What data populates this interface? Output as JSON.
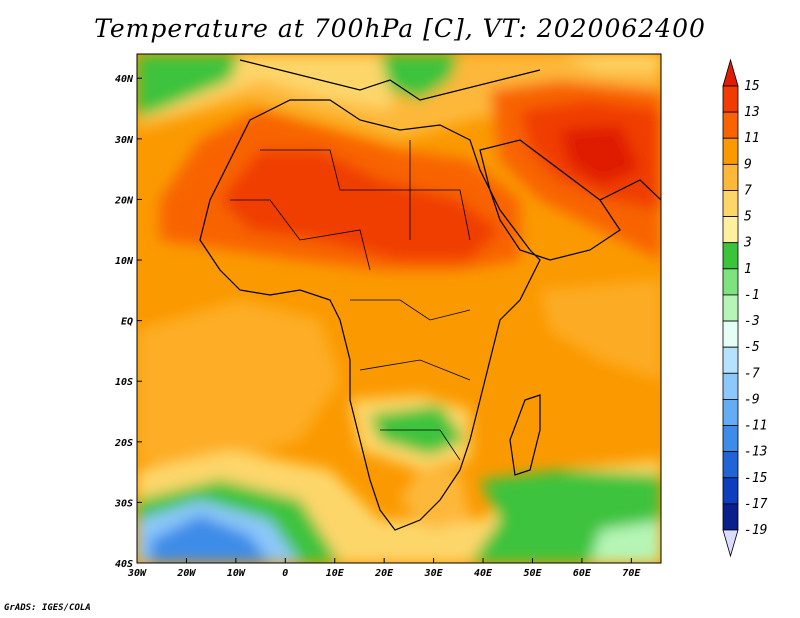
{
  "title": "Temperature at 700hPa [C], VT: 2020062400",
  "credit": "GrADS: IGES/COLA",
  "map": {
    "lon_range": [
      -30,
      76
    ],
    "lat_range": [
      -40,
      44
    ],
    "x_ticks": [
      {
        "value": -30,
        "label": "30W"
      },
      {
        "value": -20,
        "label": "20W"
      },
      {
        "value": -10,
        "label": "10W"
      },
      {
        "value": 0,
        "label": "0"
      },
      {
        "value": 10,
        "label": "10E"
      },
      {
        "value": 20,
        "label": "20E"
      },
      {
        "value": 30,
        "label": "30E"
      },
      {
        "value": 40,
        "label": "40E"
      },
      {
        "value": 50,
        "label": "50E"
      },
      {
        "value": 60,
        "label": "60E"
      },
      {
        "value": 70,
        "label": "70E"
      }
    ],
    "y_ticks": [
      {
        "value": 40,
        "label": "40N"
      },
      {
        "value": 30,
        "label": "30N"
      },
      {
        "value": 20,
        "label": "20N"
      },
      {
        "value": 10,
        "label": "10N"
      },
      {
        "value": 0,
        "label": "EQ"
      },
      {
        "value": -10,
        "label": "10S"
      },
      {
        "value": -20,
        "label": "20S"
      },
      {
        "value": -30,
        "label": "30S"
      },
      {
        "value": -40,
        "label": "40S"
      }
    ]
  },
  "colorbar": {
    "labels": [
      "15",
      "13",
      "11",
      "9",
      "7",
      "5",
      "3",
      "1",
      "-1",
      "-3",
      "-5",
      "-7",
      "-9",
      "-11",
      "-13",
      "-15",
      "-17",
      "-19"
    ],
    "colors": [
      "#e01c00",
      "#f03c00",
      "#f86400",
      "#fb9a00",
      "#fdb83a",
      "#fdd66a",
      "#fff0a0",
      "#3cc33c",
      "#7ee27e",
      "#b6f5b6",
      "#e6fff6",
      "#b4e2ff",
      "#8cc8fa",
      "#64acf4",
      "#3c8ce8",
      "#2064d6",
      "#0d3ebe",
      "#0a1e8c",
      "#dcdcff"
    ]
  }
}
